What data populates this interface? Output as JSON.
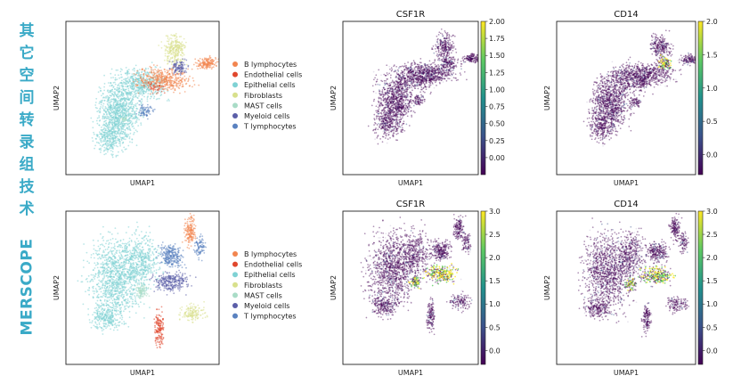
{
  "row_labels": {
    "top": [
      "其",
      "它",
      "空",
      "间",
      "转",
      "录",
      "组",
      "技",
      "术"
    ],
    "bottom": "MERSCOPE"
  },
  "colors": {
    "label_accent": "#3aaac7",
    "cell_types": {
      "B lymphocytes": "#f2854f",
      "Endothelial cells": "#e0472d",
      "Epithelial cells": "#7fd2d4",
      "Fibroblasts": "#d8e08c",
      "MAST cells": "#a9dcc7",
      "Myeloid cells": "#5b5ea8",
      "T lymphocytes": "#5a82c0"
    },
    "viridis": [
      "#440154",
      "#3b528b",
      "#21918c",
      "#5ec962",
      "#fde725"
    ]
  },
  "chart_data": [
    {
      "id": "top-celltype",
      "type": "scatter",
      "title": "",
      "xlabel": "UMAP1",
      "ylabel": "UMAP2",
      "legend": [
        "B lymphocytes",
        "Endothelial cells",
        "Epithelial cells",
        "Fibroblasts",
        "MAST cells",
        "Myeloid cells",
        "T lymphocytes"
      ],
      "legend_position": "right"
    },
    {
      "id": "top-csf1r",
      "type": "scatter",
      "title": "CSF1R",
      "xlabel": "UMAP1",
      "ylabel": "UMAP2",
      "colorbar": {
        "range": [
          -0.25,
          2.0
        ],
        "ticks": [
          "0.00",
          "0.25",
          "0.50",
          "0.75",
          "1.00",
          "1.25",
          "1.50",
          "1.75",
          "2.00"
        ]
      }
    },
    {
      "id": "top-cd14",
      "type": "scatter",
      "title": "CD14",
      "xlabel": "UMAP1",
      "ylabel": "UMAP2",
      "colorbar": {
        "range": [
          -0.3,
          2.0
        ],
        "ticks": [
          "0.0",
          "0.5",
          "1.0",
          "1.5",
          "2.0"
        ]
      }
    },
    {
      "id": "bottom-celltype",
      "type": "scatter",
      "title": "",
      "xlabel": "UMAP1",
      "ylabel": "UMAP2",
      "legend": [
        "B lymphocytes",
        "Endothelial cells",
        "Epithelial cells",
        "Fibroblasts",
        "MAST cells",
        "Myeloid cells",
        "T lymphocytes"
      ],
      "legend_position": "right"
    },
    {
      "id": "bottom-csf1r",
      "type": "scatter",
      "title": "CSF1R",
      "xlabel": "UMAP1",
      "ylabel": "UMAP2",
      "colorbar": {
        "range": [
          -0.3,
          3.0
        ],
        "ticks": [
          "0.0",
          "0.5",
          "1.0",
          "1.5",
          "2.0",
          "2.5",
          "3.0"
        ]
      }
    },
    {
      "id": "bottom-cd14",
      "type": "scatter",
      "title": "CD14",
      "xlabel": "UMAP1",
      "ylabel": "UMAP2",
      "colorbar": {
        "range": [
          -0.3,
          3.0
        ],
        "ticks": [
          "0.0",
          "0.5",
          "1.0",
          "1.5",
          "2.0",
          "2.5",
          "3.0"
        ]
      }
    }
  ]
}
